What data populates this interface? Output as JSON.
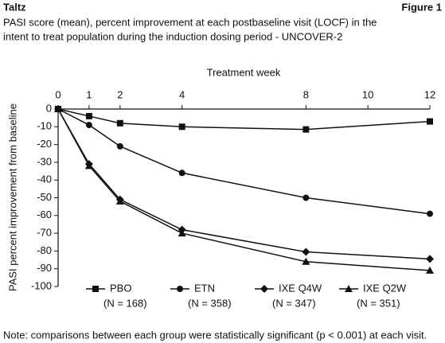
{
  "chart_data": {
    "type": "line",
    "brand": "Taltz",
    "figure": "Figure 1",
    "title": "PASI score (mean), percent improvement at each postbaseline visit (LOCF) in the",
    "title_line2": "intent to treat population during the induction dosing period - UNCOVER-2",
    "x_label": "Treatment week",
    "y_label": "PASI percent improvement from baseline",
    "note": "Note: comparisons between each group were statistically significant (p < 0.001) at each visit.",
    "x": [
      0,
      1,
      2,
      4,
      8,
      12
    ],
    "xlim": [
      0,
      12
    ],
    "xticks": [
      0,
      1,
      2,
      4,
      8,
      10,
      12
    ],
    "ylim": [
      -100,
      0
    ],
    "yticks": [
      0,
      -10,
      -20,
      -30,
      -40,
      -50,
      -60,
      -70,
      -80,
      -90,
      -100
    ],
    "series": [
      {
        "name": "PBO",
        "n_label": "(N = 168)",
        "marker": "square",
        "color": "#111111",
        "values": [
          0,
          -4,
          -8,
          -10,
          -11.5,
          -7
        ]
      },
      {
        "name": "ETN",
        "n_label": "(N = 358)",
        "marker": "circle",
        "color": "#111111",
        "values": [
          0,
          -9,
          -21,
          -36,
          -50,
          -59
        ]
      },
      {
        "name": "IXE Q4W",
        "n_label": "(N = 347)",
        "marker": "diamond",
        "color": "#111111",
        "values": [
          0,
          -31,
          -51,
          -68,
          -80.5,
          -84.5
        ]
      },
      {
        "name": "IXE Q2W",
        "n_label": "(N = 351)",
        "marker": "triangle",
        "color": "#111111",
        "values": [
          0,
          -32,
          -52,
          -70,
          -86,
          -91
        ]
      }
    ]
  }
}
